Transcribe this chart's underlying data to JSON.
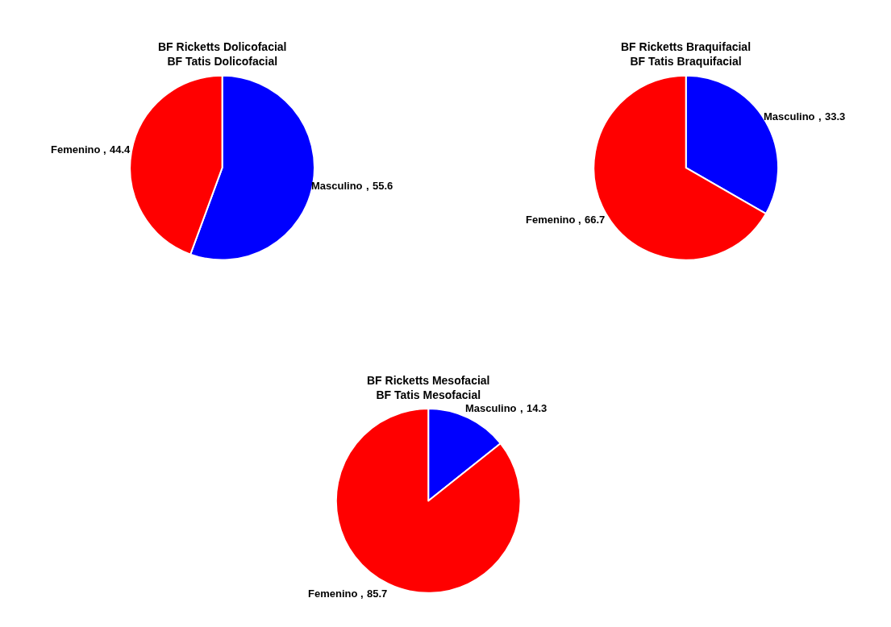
{
  "chart_data": [
    {
      "type": "pie",
      "title": "BF Ricketts Dolicofacial\nBF Tatis Dolicofacial",
      "categories": [
        "Masculino",
        "Femenino"
      ],
      "values": [
        55.6,
        44.4
      ],
      "colors": [
        "#0000ff",
        "#ff0000"
      ],
      "data_labels": true,
      "annotations": [
        ",",
        ","
      ],
      "legend": false
    },
    {
      "type": "pie",
      "title": "BF Ricketts Braquifacial\nBF Tatis Braquifacial",
      "categories": [
        "Masculino",
        "Femenino"
      ],
      "values": [
        33.3,
        66.7
      ],
      "colors": [
        "#0000ff",
        "#ff0000"
      ],
      "data_labels": true,
      "annotations": [
        ",",
        ","
      ],
      "legend": false
    },
    {
      "type": "pie",
      "title": "BF Ricketts Mesofacial\nBF Tatis Mesofacial",
      "categories": [
        "Masculino",
        "Femenino"
      ],
      "values": [
        14.3,
        85.7
      ],
      "colors": [
        "#0000ff",
        "#ff0000"
      ],
      "data_labels": true,
      "annotations": [
        ",",
        ","
      ],
      "legend": false
    }
  ]
}
